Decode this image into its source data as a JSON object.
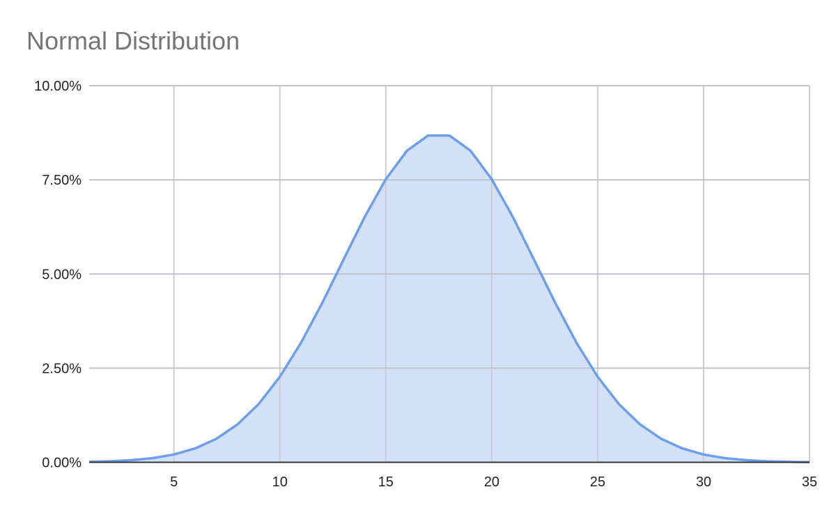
{
  "chart_data": {
    "type": "area",
    "title": "Normal Distribution",
    "xlabel": "",
    "ylabel": "",
    "xlim": [
      1,
      35
    ],
    "ylim": [
      0,
      10
    ],
    "x_ticks": [
      5,
      10,
      15,
      20,
      25,
      30,
      35
    ],
    "y_ticks": [
      "0.00%",
      "2.50%",
      "5.00%",
      "7.50%",
      "10.00%"
    ],
    "y_tick_values": [
      0,
      2.5,
      5,
      7.5,
      10
    ],
    "grid": true,
    "legend": "none",
    "colors": {
      "line": "#6d9eeb",
      "fill": "#d3e1f8",
      "grid": "#cccccc",
      "axis": "#333333",
      "title": "#757575"
    },
    "x": [
      1,
      2,
      3,
      4,
      5,
      6,
      7,
      8,
      9,
      10,
      11,
      12,
      13,
      14,
      15,
      16,
      17,
      18,
      19,
      20,
      21,
      22,
      23,
      24,
      25,
      26,
      27,
      28,
      29,
      30,
      31,
      32,
      33,
      34,
      35
    ],
    "series": [
      {
        "name": "Normal Distribution",
        "unit": "%",
        "values": [
          0.013,
          0.028,
          0.057,
          0.111,
          0.207,
          0.368,
          0.623,
          1.006,
          1.548,
          2.271,
          3.176,
          4.231,
          5.376,
          6.511,
          7.517,
          8.273,
          8.678,
          8.678,
          8.273,
          7.517,
          6.511,
          5.376,
          4.231,
          3.176,
          2.271,
          1.548,
          1.006,
          0.623,
          0.368,
          0.207,
          0.111,
          0.057,
          0.028,
          0.013,
          0.006
        ]
      }
    ]
  }
}
